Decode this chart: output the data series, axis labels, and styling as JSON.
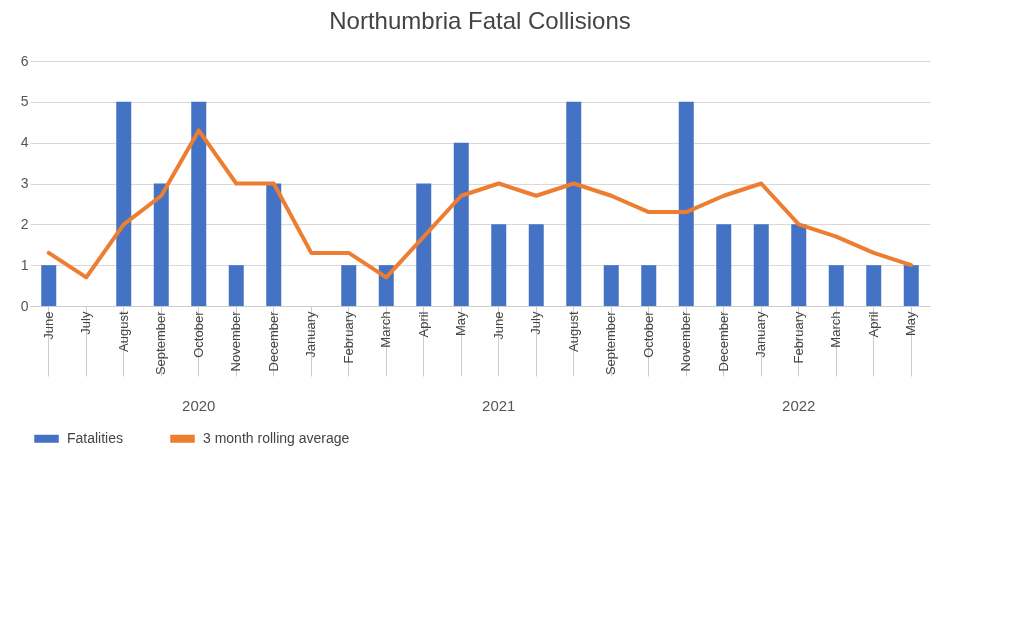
{
  "chart_data": {
    "type": "bar",
    "title": "Northumbria Fatal Collisions",
    "categories": [
      "June",
      "July",
      "August",
      "September",
      "October",
      "November",
      "December",
      "January",
      "February",
      "March",
      "April",
      "May",
      "June",
      "July",
      "August",
      "September",
      "October",
      "November",
      "December",
      "January",
      "February",
      "March",
      "April",
      "May"
    ],
    "series": [
      {
        "name": "Fatalities",
        "color": "#4472c4",
        "values": [
          1,
          0,
          5,
          3,
          5,
          1,
          3,
          0,
          1,
          1,
          3,
          4,
          2,
          2,
          5,
          1,
          1,
          5,
          2,
          2,
          2,
          1,
          1,
          1
        ]
      },
      {
        "name": "3 month rolling average",
        "type": "line",
        "color": "#ed7d31",
        "values": [
          1.3,
          0.7,
          2,
          2.7,
          4.3,
          3,
          3,
          1.3,
          1.3,
          0.7,
          1.7,
          2.7,
          3,
          2.7,
          3,
          2.7,
          2.3,
          2.3,
          2.7,
          3,
          2,
          1.7,
          1.3,
          1
        ]
      }
    ],
    "annotations": [
      "2020",
      "2021",
      "2022"
    ],
    "ylim": [
      0,
      6
    ],
    "yticks": [
      0,
      1,
      2,
      3,
      4,
      5,
      6
    ],
    "grid": "y",
    "legend": "bottom"
  }
}
